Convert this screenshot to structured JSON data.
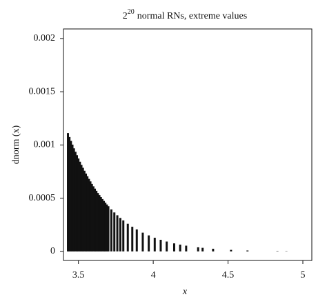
{
  "chart_data": {
    "type": "spike",
    "title": {
      "base": "2",
      "superscript": "20",
      "text": "normal RNs, extreme values"
    },
    "x_label": "x",
    "y_label": "dnorm (x)",
    "color": "#111111",
    "xlim": [
      3.4,
      5.06
    ],
    "ylim": [
      -8.5e-05,
      0.00209
    ],
    "xticks": [
      3.5,
      4,
      4.5,
      5
    ],
    "yticks": [
      0,
      0.0005,
      0.001,
      0.0015,
      0.002
    ],
    "x": [
      3.43,
      3.44,
      3.45,
      3.46,
      3.47,
      3.48,
      3.49,
      3.5,
      3.51,
      3.52,
      3.53,
      3.54,
      3.55,
      3.56,
      3.57,
      3.58,
      3.59,
      3.6,
      3.61,
      3.62,
      3.63,
      3.64,
      3.65,
      3.66,
      3.67,
      3.68,
      3.69,
      3.7,
      3.72,
      3.74,
      3.76,
      3.78,
      3.8,
      3.83,
      3.86,
      3.89,
      3.93,
      3.97,
      4.01,
      4.05,
      4.09,
      4.14,
      4.18,
      4.22,
      4.3,
      4.33,
      4.4,
      4.52,
      4.63,
      4.83,
      4.89
    ],
    "values": [
      0.001112,
      0.0010747,
      0.0010383,
      0.001003,
      0.0009689,
      0.0009358,
      0.0009037,
      0.0008727,
      0.0008426,
      0.0008135,
      0.0007853,
      0.000758,
      0.0007316,
      0.000706,
      0.0006813,
      0.0006574,
      0.0006342,
      0.0006118,
      0.0005901,
      0.0005692,
      0.0005489,
      0.0005293,
      0.0005104,
      0.0004921,
      0.0004744,
      0.0004573,
      0.0004408,
      0.0004248,
      0.0003944,
      0.0003661,
      0.0003395,
      0.0003146,
      0.0002914,
      0.0002599,
      0.0002316,
      0.0002062,
      0.0001763,
      0.0001505,
      0.0001283,
      0.0001092,
      9.28e-05,
      7.55e-05,
      6.39e-05,
      5.4e-05,
      3.85e-05,
      3.385e-05,
      2.494e-05,
      1.46e-05,
      8.83e-06,
      3.43e-06,
      2.56e-06
    ]
  }
}
